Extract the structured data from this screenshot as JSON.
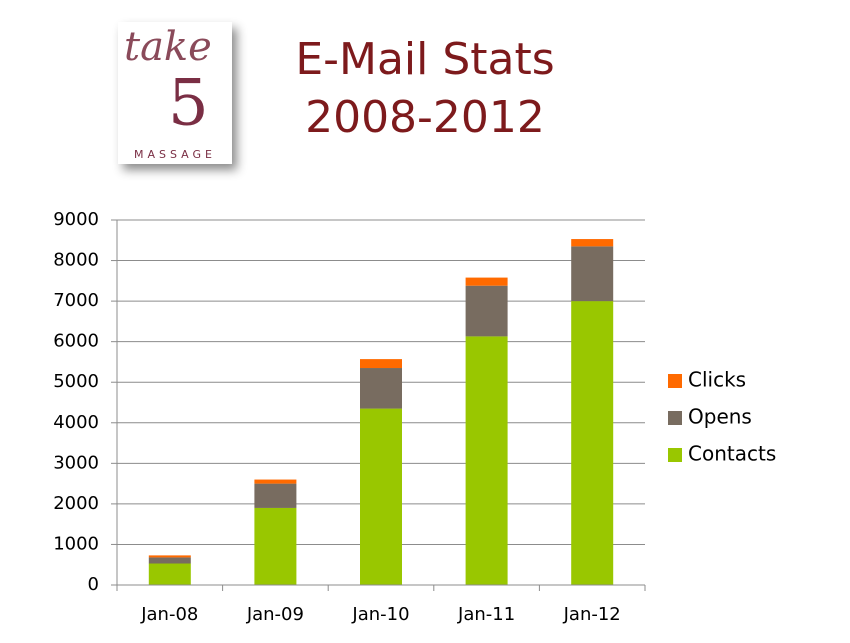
{
  "logo": {
    "word": "take",
    "digit": "5",
    "tagline": "MASSAGE"
  },
  "chart_data": {
    "type": "stacked_bar",
    "title": "E-Mail Stats",
    "subtitle": "2008-2012",
    "categories": [
      "Jan-08",
      "Jan-09",
      "Jan-10",
      "Jan-11",
      "Jan-12"
    ],
    "series": [
      {
        "name": "Contacts",
        "color": "#99c700",
        "values": [
          530,
          1900,
          4350,
          6130,
          7000
        ]
      },
      {
        "name": "Opens",
        "color": "#786c60",
        "values": [
          150,
          600,
          1000,
          1250,
          1350
        ]
      },
      {
        "name": "Clicks",
        "color": "#ff6a00",
        "values": [
          50,
          100,
          220,
          200,
          180
        ]
      }
    ],
    "ylim": [
      0,
      9000
    ],
    "yticks": [
      0,
      1000,
      2000,
      3000,
      4000,
      5000,
      6000,
      7000,
      8000,
      9000
    ],
    "grid": true,
    "legend": "right"
  }
}
